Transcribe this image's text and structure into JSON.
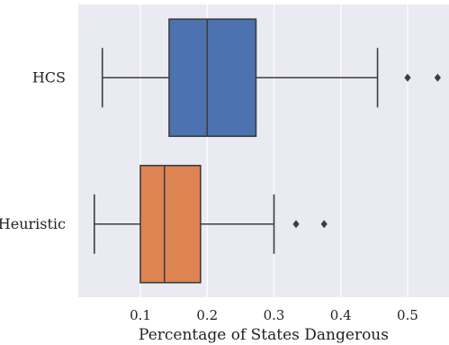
{
  "chart_data": {
    "type": "boxplot",
    "orientation": "horizontal",
    "title": "",
    "xlabel": "Percentage of States Dangerous",
    "ylabel": "",
    "xlim": [
      0.007,
      0.562
    ],
    "x_ticks": [
      0.1,
      0.2,
      0.3,
      0.4,
      0.5
    ],
    "x_tick_labels": [
      "0.1",
      "0.2",
      "0.3",
      "0.4",
      "0.5"
    ],
    "grid": "vertical",
    "background": "#eaeaf2",
    "categories": [
      "HCS",
      "Heuristic"
    ],
    "series": [
      {
        "name": "HCS",
        "color": "#4c72b0",
        "whisker_low": 0.043,
        "q1": 0.143,
        "median": 0.2,
        "q3": 0.273,
        "whisker_high": 0.455,
        "outliers": [
          0.5,
          0.545
        ]
      },
      {
        "name": "Heuristic",
        "color": "#dd8452",
        "whisker_low": 0.031,
        "q1": 0.1,
        "median": 0.136,
        "q3": 0.19,
        "whisker_high": 0.3,
        "outliers": [
          0.333,
          0.375
        ]
      }
    ]
  }
}
